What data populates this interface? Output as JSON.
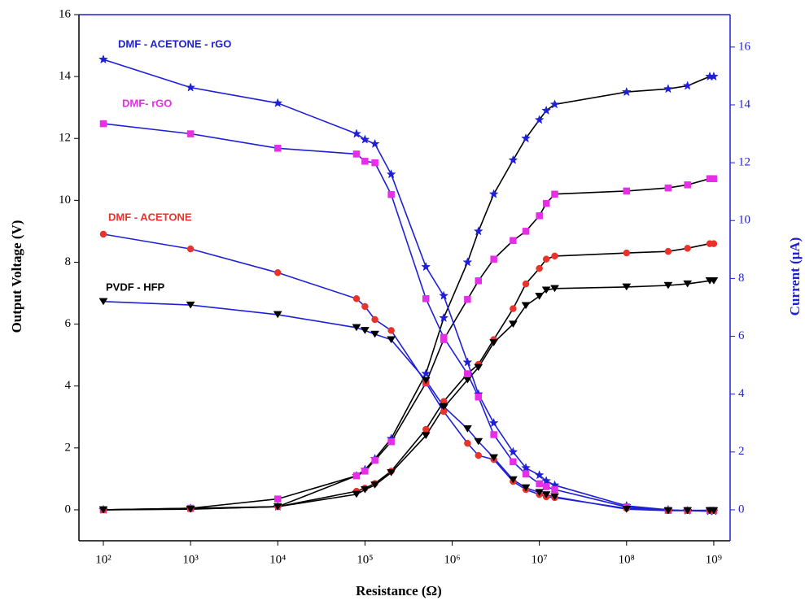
{
  "chart_data": {
    "type": "line",
    "xlabel": "Resistance (Ω)",
    "ylabel": "Output Voltage (V)",
    "y2label": "Current (μA)",
    "log_x": true,
    "xlim": [
      52.5,
      1540000000
    ],
    "xticks": [
      {
        "value": 100,
        "label": "10²"
      },
      {
        "value": 1000,
        "label": "10³"
      },
      {
        "value": 10000,
        "label": "10⁴"
      },
      {
        "value": 100000,
        "label": "10⁵"
      },
      {
        "value": 1000000,
        "label": "10⁶"
      },
      {
        "value": 10000000,
        "label": "10⁷"
      },
      {
        "value": 100000000,
        "label": "10⁸"
      },
      {
        "value": 1000000000,
        "label": "10⁹"
      }
    ],
    "ylim": [
      -1,
      16
    ],
    "yticks": [
      0,
      2,
      4,
      6,
      8,
      10,
      12,
      14,
      16
    ],
    "y2lim": [
      -1.07,
      17.12
    ],
    "y2ticks": [
      0,
      2,
      4,
      6,
      8,
      10,
      12,
      14,
      16
    ],
    "y2_color": "#1f1fd6",
    "x": [
      100,
      1000,
      10000,
      80000,
      100000,
      130000,
      200000,
      500000,
      800000,
      1500000,
      2000000,
      3000000,
      5000000,
      7000000,
      10000000,
      12000000,
      15000000,
      100000000,
      300000000,
      500000000,
      900000000,
      1000000000
    ],
    "series": [
      {
        "name": "DMF - ACETONE - rGO",
        "color": "#1f1fd6",
        "line_color": "#000000",
        "marker": "star",
        "values": [
          0,
          0.05,
          0.1,
          1.1,
          1.3,
          1.65,
          2.3,
          4.4,
          6.2,
          8.0,
          9.0,
          10.2,
          11.3,
          12.0,
          12.6,
          12.9,
          13.1,
          13.5,
          13.6,
          13.7,
          14.0,
          14.0
        ]
      },
      {
        "name": "DMF- rGO",
        "color": "#e62ee6",
        "line_color": "#000000",
        "marker": "square",
        "values": [
          0,
          0.05,
          0.35,
          1.1,
          1.25,
          1.6,
          2.2,
          4.1,
          5.5,
          6.8,
          7.4,
          8.1,
          8.7,
          9.0,
          9.5,
          9.9,
          10.2,
          10.3,
          10.4,
          10.5,
          10.7,
          10.7
        ]
      },
      {
        "name": "DMF - ACETONE",
        "color": "#e8322a",
        "line_color": "#000000",
        "marker": "circle",
        "values": [
          0,
          0.03,
          0.1,
          0.6,
          0.7,
          0.85,
          1.25,
          2.6,
          3.5,
          4.4,
          4.7,
          5.5,
          6.5,
          7.3,
          7.8,
          8.1,
          8.2,
          8.3,
          8.35,
          8.45,
          8.6,
          8.6
        ]
      },
      {
        "name": "PVDF - HFP",
        "color": "#000000",
        "line_color": "#000000",
        "marker": "triangle-down",
        "values": [
          0,
          0.02,
          0.1,
          0.5,
          0.65,
          0.8,
          1.2,
          2.4,
          3.3,
          4.2,
          4.6,
          5.4,
          6.0,
          6.6,
          6.9,
          7.1,
          7.15,
          7.2,
          7.25,
          7.3,
          7.4,
          7.4
        ]
      },
      {
        "color": "#1f1fd6",
        "line_color": "#1f1fd6",
        "marker": "star",
        "axis": "y2",
        "values": [
          15.57,
          14.6,
          14.06,
          13.0,
          12.8,
          12.65,
          11.6,
          8.4,
          7.4,
          5.1,
          4.0,
          3.0,
          2.0,
          1.45,
          1.2,
          1.0,
          0.85,
          0.14,
          0.0,
          -0.03,
          -0.05,
          -0.05
        ]
      },
      {
        "color": "#e62ee6",
        "line_color": "#1f1fd6",
        "marker": "square",
        "axis": "y2",
        "values": [
          13.35,
          13.0,
          12.5,
          12.3,
          12.05,
          12.0,
          10.9,
          7.3,
          5.96,
          4.7,
          3.9,
          2.6,
          1.66,
          1.24,
          0.9,
          0.8,
          0.7,
          0.1,
          -0.02,
          -0.02,
          -0.02,
          -0.02
        ]
      },
      {
        "color": "#e8322a",
        "line_color": "#1f1fd6",
        "marker": "circle",
        "axis": "y2",
        "values": [
          9.53,
          9.02,
          8.2,
          7.3,
          7.03,
          6.58,
          6.2,
          4.39,
          3.4,
          2.3,
          1.88,
          1.74,
          0.98,
          0.7,
          0.53,
          0.45,
          0.42,
          0.05,
          -0.02,
          -0.02,
          -0.02,
          -0.02
        ]
      },
      {
        "color": "#000000",
        "line_color": "#1f1fd6",
        "marker": "triangle-down",
        "axis": "y2",
        "values": [
          7.2,
          7.08,
          6.75,
          6.3,
          6.2,
          6.07,
          5.88,
          4.47,
          3.57,
          2.8,
          2.36,
          1.8,
          1.04,
          0.76,
          0.6,
          0.52,
          0.45,
          0.02,
          -0.03,
          -0.03,
          -0.03,
          -0.03
        ]
      }
    ]
  }
}
